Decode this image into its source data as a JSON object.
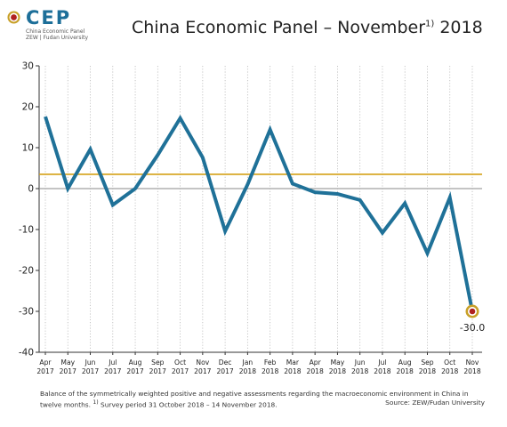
{
  "logo": {
    "text": "CEP",
    "line1": "China Economic Panel",
    "line2": "ZEW | Fudan University",
    "colors": {
      "outer": "#c8a028",
      "inner": "#b02020",
      "text": "#1d6f99"
    }
  },
  "title": {
    "main": "China Economic Panel – November",
    "footnote_mark": "1)",
    "year": "2018"
  },
  "caption": {
    "line1": "Balance of the symmetrically weighted positive and negative assessments regarding the macroeconomic environment in China in",
    "line2": "twelve months.",
    "footnote_mark": "1)",
    "survey": "Survey period 31 October 2018 – 14 November 2018.",
    "source": "Source: ZEW/Fudan University"
  },
  "chart_data": {
    "type": "line",
    "categories": [
      [
        "Apr",
        "2017"
      ],
      [
        "May",
        "2017"
      ],
      [
        "Jun",
        "2017"
      ],
      [
        "Jul",
        "2017"
      ],
      [
        "Aug",
        "2017"
      ],
      [
        "Sep",
        "2017"
      ],
      [
        "Oct",
        "2017"
      ],
      [
        "Nov",
        "2017"
      ],
      [
        "Dec",
        "2017"
      ],
      [
        "Jan",
        "2018"
      ],
      [
        "Feb",
        "2018"
      ],
      [
        "Mar",
        "2018"
      ],
      [
        "Apr",
        "2018"
      ],
      [
        "May",
        "2018"
      ],
      [
        "Jun",
        "2018"
      ],
      [
        "Jul",
        "2018"
      ],
      [
        "Aug",
        "2018"
      ],
      [
        "Sep",
        "2018"
      ],
      [
        "Oct",
        "2018"
      ],
      [
        "Nov",
        "2018"
      ]
    ],
    "values": [
      17.6,
      0,
      9.6,
      -4.0,
      0,
      8.2,
      17.2,
      7.6,
      -10.4,
      1.0,
      14.4,
      1.2,
      -0.9,
      -1.3,
      -2.8,
      -10.8,
      -3.6,
      -15.8,
      -2.2,
      -30.0
    ],
    "ylim": [
      -40,
      30
    ],
    "yticks": [
      30,
      20,
      10,
      0,
      -10,
      -20,
      -30,
      -40
    ],
    "reference_line": 3.5,
    "last_label": "-30.0",
    "grid": "vertical dotted",
    "colors": {
      "line": "#1f7198",
      "reference": "#d4a017",
      "zero": "#888888",
      "marker_outer": "#c8a028",
      "marker_inner": "#b02020"
    }
  }
}
